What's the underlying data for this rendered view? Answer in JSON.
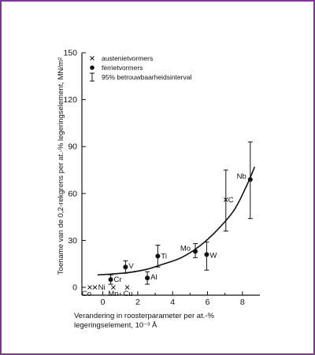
{
  "chart_data": {
    "type": "scatter",
    "title": "",
    "ylabel": "Toename van de 0,2-rekgrens per at.-% legeringselement, MN/m²",
    "xlabel_line1": "Verandering in roosterparameter per at.-%",
    "xlabel_line2": "legeringselement, 10⁻³ Å",
    "xlim": [
      -1.2,
      9.0
    ],
    "ylim": [
      -5,
      150
    ],
    "xticks": [
      0,
      2,
      4,
      6,
      8
    ],
    "yticks": [
      0,
      30,
      60,
      90,
      120,
      150
    ],
    "legend": {
      "placement": "top-left",
      "entries": [
        {
          "marker": "cross",
          "label": "austenietvormers"
        },
        {
          "marker": "dot",
          "label": "ferrietvormers"
        },
        {
          "marker": "errorbar",
          "label": "95% betrouwbaarheidsinterval"
        }
      ]
    },
    "points": [
      {
        "label": "Co",
        "x": -0.75,
        "y": 0,
        "marker": "cross"
      },
      {
        "label": "Ni",
        "x": -0.45,
        "y": 0,
        "marker": "cross"
      },
      {
        "label": "Mn",
        "x": 0.6,
        "y": 0,
        "marker": "cross"
      },
      {
        "label": "Cu",
        "x": 1.4,
        "y": 0,
        "marker": "cross"
      },
      {
        "label": "Cr",
        "x": 0.45,
        "y": 5,
        "marker": "dot",
        "err": [
          2,
          8
        ]
      },
      {
        "label": "V",
        "x": 1.3,
        "y": 13,
        "marker": "dot",
        "err": [
          9,
          17
        ]
      },
      {
        "label": "Al",
        "x": 2.55,
        "y": 6,
        "marker": "dot",
        "err": [
          2,
          10
        ]
      },
      {
        "label": "Ti",
        "x": 3.15,
        "y": 20,
        "marker": "dot",
        "err": [
          13,
          27
        ]
      },
      {
        "label": "Mo",
        "x": 5.3,
        "y": 23,
        "marker": "dot",
        "err": [
          19,
          28
        ]
      },
      {
        "label": "W",
        "x": 5.95,
        "y": 21,
        "marker": "dot",
        "err": [
          11,
          29
        ]
      },
      {
        "label": "C",
        "x": 7.05,
        "y": 56,
        "marker": "cross",
        "err": [
          36,
          75
        ]
      },
      {
        "label": "Nb",
        "x": 8.45,
        "y": 69,
        "marker": "dot",
        "err": [
          44,
          93
        ]
      }
    ],
    "fit_curve": {
      "x": [
        -0.3,
        0.5,
        1.5,
        2.5,
        3.5,
        4.5,
        5.5,
        6.5,
        7.5,
        8.2,
        8.7
      ],
      "y": [
        8,
        8.5,
        9.5,
        11.5,
        15,
        19,
        26,
        36,
        49,
        64,
        77
      ]
    }
  }
}
